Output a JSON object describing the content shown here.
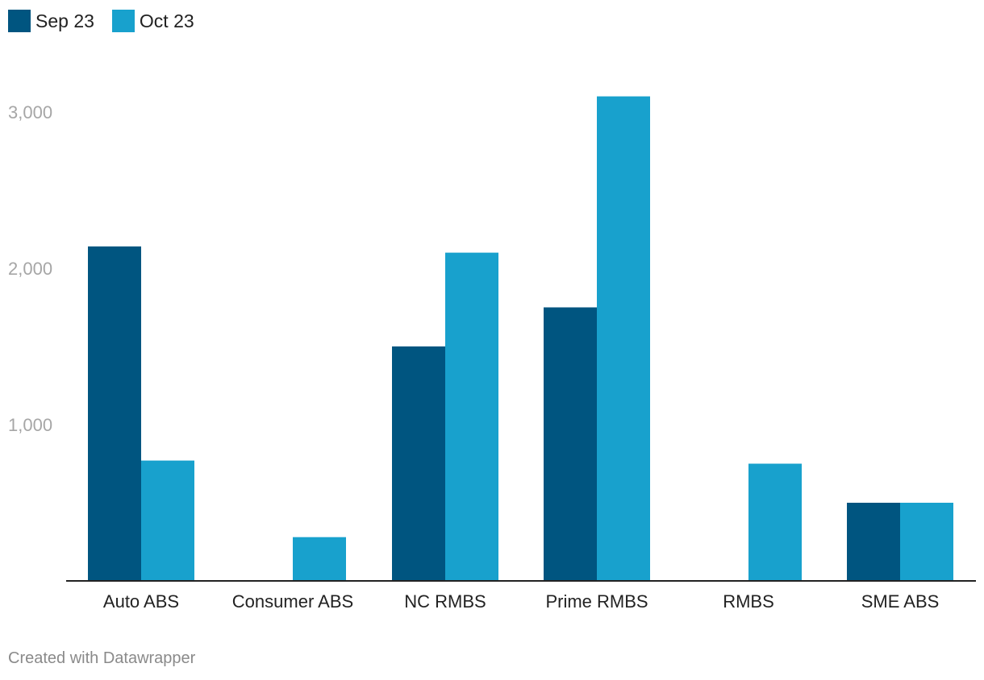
{
  "legend": {
    "items": [
      {
        "label": "Sep 23",
        "color": "#005580"
      },
      {
        "label": "Oct 23",
        "color": "#18a1cd"
      }
    ]
  },
  "chart_data": {
    "type": "bar",
    "categories": [
      "Auto ABS",
      "Consumer ABS",
      "NC RMBS",
      "Prime RMBS",
      "RMBS",
      "SME ABS"
    ],
    "series": [
      {
        "name": "Sep 23",
        "values": [
          2140,
          0,
          1500,
          1750,
          0,
          500
        ]
      },
      {
        "name": "Oct 23",
        "values": [
          770,
          280,
          2100,
          3100,
          750,
          500
        ]
      }
    ],
    "yticks": [
      1000,
      2000,
      3000
    ],
    "ytick_labels": [
      "1,000",
      "2,000",
      "3,000"
    ],
    "ylim": [
      0,
      3100
    ],
    "grid": false,
    "legend_position": "top-left",
    "title": "",
    "xlabel": "",
    "ylabel": ""
  },
  "footer": {
    "credit": "Created with Datawrapper"
  }
}
